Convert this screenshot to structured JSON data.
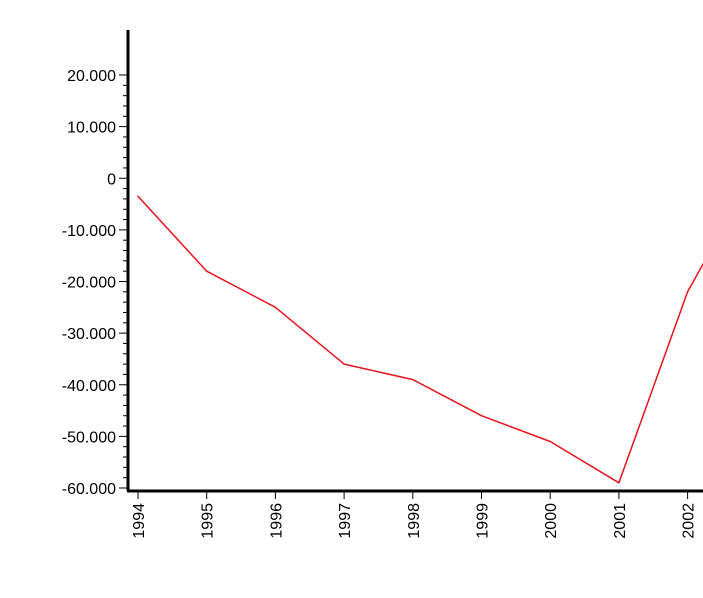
{
  "chart_data": {
    "type": "line",
    "title": "",
    "xlabel": "",
    "ylabel": "",
    "categories": [
      "1994",
      "1995",
      "1996",
      "1997",
      "1998",
      "1999",
      "2000",
      "2001",
      "2002"
    ],
    "series": [
      {
        "color": "#e8141c",
        "values": [
          -3500,
          -18000,
          -25000,
          -36000,
          -39000,
          -46000,
          -51000,
          -59000,
          -22000
        ]
      }
    ],
    "trailing_point": {
      "x_offset_from_last_category": 0.25,
      "value": -16000
    },
    "ylim": [
      -60000,
      20000
    ],
    "y_ticks": [
      {
        "value": -60000,
        "label": "-60.000"
      },
      {
        "value": -50000,
        "label": "-50.000"
      },
      {
        "value": -40000,
        "label": "-40.000"
      },
      {
        "value": -30000,
        "label": "-30.000"
      },
      {
        "value": -20000,
        "label": "-20.000"
      },
      {
        "value": -10000,
        "label": "-10.000"
      },
      {
        "value": 0,
        "label": "0"
      },
      {
        "value": 10000,
        "label": "10.000"
      },
      {
        "value": 20000,
        "label": "20.000"
      }
    ],
    "y_minor_step": 2000,
    "grid": false,
    "legend": "none",
    "axis_color": "#000000"
  }
}
